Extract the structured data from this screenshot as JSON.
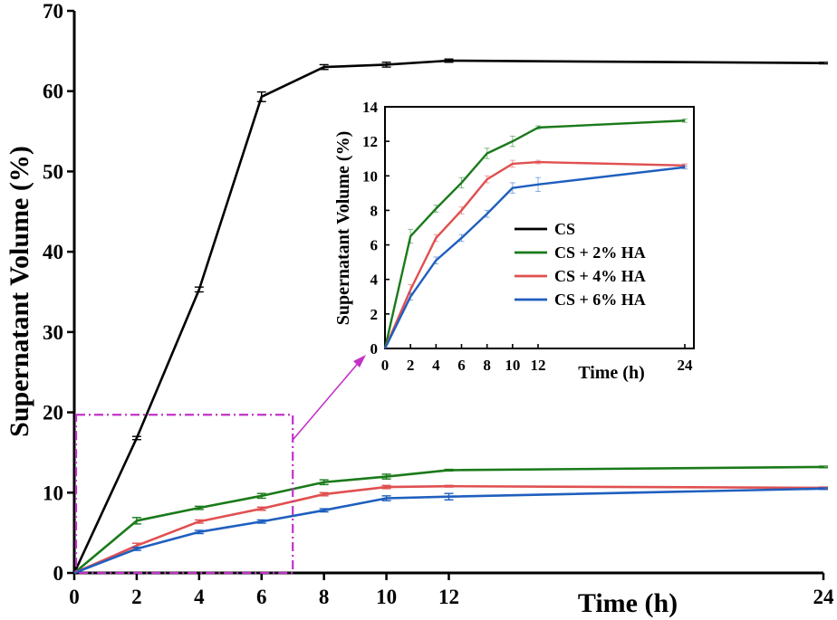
{
  "chart_data": [
    {
      "type": "line",
      "name": "main",
      "ylabel": "Supernatant Volume (%)",
      "xlabel": "Time (h)",
      "xlim": [
        0,
        24
      ],
      "ylim": [
        0,
        70
      ],
      "x_tick_labels": [
        {
          "x": 0,
          "label": "0"
        },
        {
          "x": 2,
          "label": "2"
        },
        {
          "x": 4,
          "label": "4"
        },
        {
          "x": 6,
          "label": "6"
        },
        {
          "x": 8,
          "label": "8"
        },
        {
          "x": 10,
          "label": "10"
        },
        {
          "x": 12,
          "label": "12"
        },
        {
          "x": 24,
          "label": "24"
        }
      ],
      "y_tick_labels": [
        {
          "y": 0,
          "label": "0"
        },
        {
          "y": 10,
          "label": "10"
        },
        {
          "y": 20,
          "label": "20"
        },
        {
          "y": 30,
          "label": "30"
        },
        {
          "y": 40,
          "label": "40"
        },
        {
          "y": 50,
          "label": "50"
        },
        {
          "y": 60,
          "label": "60"
        },
        {
          "y": 70,
          "label": "70"
        }
      ],
      "series": [
        {
          "name": "CS",
          "color": "#000000",
          "x": [
            0,
            2,
            4,
            6,
            8,
            10,
            12,
            24
          ],
          "values": [
            0,
            16.8,
            35.3,
            59.3,
            63.0,
            63.3,
            63.8,
            63.5
          ],
          "err": [
            0,
            0.2,
            0.3,
            0.6,
            0.3,
            0.3,
            0.2,
            0.1
          ]
        },
        {
          "name": "CS + 2% HA",
          "color": "#1a7a1a",
          "x": [
            0,
            2,
            4,
            6,
            8,
            10,
            12,
            24
          ],
          "values": [
            0,
            6.5,
            8.1,
            9.6,
            11.3,
            12.0,
            12.8,
            13.2
          ],
          "err": [
            0,
            0.4,
            0.2,
            0.3,
            0.3,
            0.3,
            0.1,
            0.1
          ]
        },
        {
          "name": "CS + 4% HA",
          "color": "#e05050",
          "x": [
            0,
            2,
            4,
            6,
            8,
            10,
            12,
            24
          ],
          "values": [
            0,
            3.4,
            6.4,
            8.0,
            9.8,
            10.7,
            10.8,
            10.6
          ],
          "err": [
            0,
            0.3,
            0.2,
            0.2,
            0.2,
            0.2,
            0.1,
            0.1
          ]
        },
        {
          "name": "CS + 6% HA",
          "color": "#1f5fbf",
          "x": [
            0,
            2,
            4,
            6,
            8,
            10,
            12,
            24
          ],
          "values": [
            0,
            3.0,
            5.1,
            6.4,
            7.8,
            9.3,
            9.5,
            10.5
          ],
          "err": [
            0,
            0.2,
            0.2,
            0.2,
            0.2,
            0.3,
            0.4,
            0.1
          ]
        }
      ],
      "zoom_region": {
        "x": [
          0,
          7
        ],
        "y": [
          0,
          19.7
        ],
        "color": "#c232c8"
      }
    },
    {
      "type": "line",
      "name": "inset",
      "ylabel": "Supernatant Volume (%)",
      "xlabel": "Time (h)",
      "xlim": [
        0,
        24
      ],
      "ylim": [
        0,
        14
      ],
      "x_tick_labels": [
        {
          "x": 0,
          "label": "0"
        },
        {
          "x": 2,
          "label": "2"
        },
        {
          "x": 4,
          "label": "4"
        },
        {
          "x": 6,
          "label": "6"
        },
        {
          "x": 8,
          "label": "8"
        },
        {
          "x": 10,
          "label": "10"
        },
        {
          "x": 12,
          "label": "12"
        },
        {
          "x": 24,
          "label": "24"
        }
      ],
      "y_tick_labels": [
        {
          "y": 0,
          "label": "0"
        },
        {
          "y": 2,
          "label": "2"
        },
        {
          "y": 4,
          "label": "4"
        },
        {
          "y": 6,
          "label": "6"
        },
        {
          "y": 8,
          "label": "8"
        },
        {
          "y": 10,
          "label": "10"
        },
        {
          "y": 12,
          "label": "12"
        },
        {
          "y": 14,
          "label": "14"
        }
      ],
      "legend": [
        "CS",
        "CS + 2% HA",
        "CS + 4% HA",
        "CS + 6% HA"
      ],
      "legend_position": "center-right",
      "series_refs": [
        "CS + 2% HA",
        "CS + 4% HA",
        "CS + 6% HA"
      ]
    }
  ]
}
